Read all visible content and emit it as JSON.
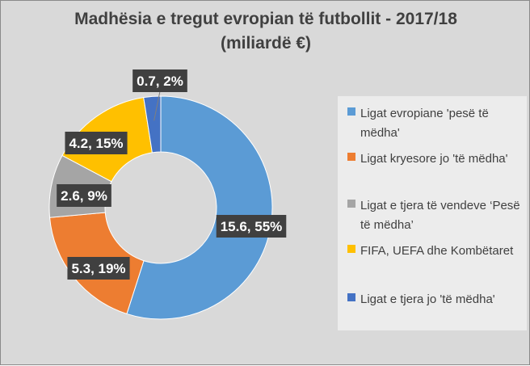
{
  "title_line1": "Madhësia e tregut evropian të futbollit - 2017/18",
  "title_line2": "(miliardë €)",
  "chart_data": {
    "type": "pie",
    "variant": "donut",
    "title": "Madhësia e tregut evropian të futbollit - 2017/18 (miliardë €)",
    "legend_position": "right",
    "slices": [
      {
        "name": "Ligat evropiane 'pesë të mëdha'",
        "value": 15.6,
        "percent": 55,
        "label": "15.6, 55%",
        "color": "#5b9bd5"
      },
      {
        "name": "Ligat kryesore jo 'të mëdha'",
        "value": 5.3,
        "percent": 19,
        "label": "5.3, 19%",
        "color": "#ed7d31"
      },
      {
        "name": "Ligat e tjera të vendeve ‘Pesë të mëdha’",
        "value": 2.6,
        "percent": 9,
        "label": "2.6, 9%",
        "color": "#a5a5a5"
      },
      {
        "name": "FIFA, UEFA dhe Kombëtaret",
        "value": 4.2,
        "percent": 15,
        "label": "4.2, 15%",
        "color": "#ffc000"
      },
      {
        "name": "Ligat e tjera jo 'të mëdha'",
        "value": 0.7,
        "percent": 2,
        "label": "0.7, 2%",
        "color": "#4472c4"
      }
    ]
  },
  "colors": {
    "background": "#d9d9d9",
    "label_box": "#404040",
    "title_text": "#404040"
  }
}
